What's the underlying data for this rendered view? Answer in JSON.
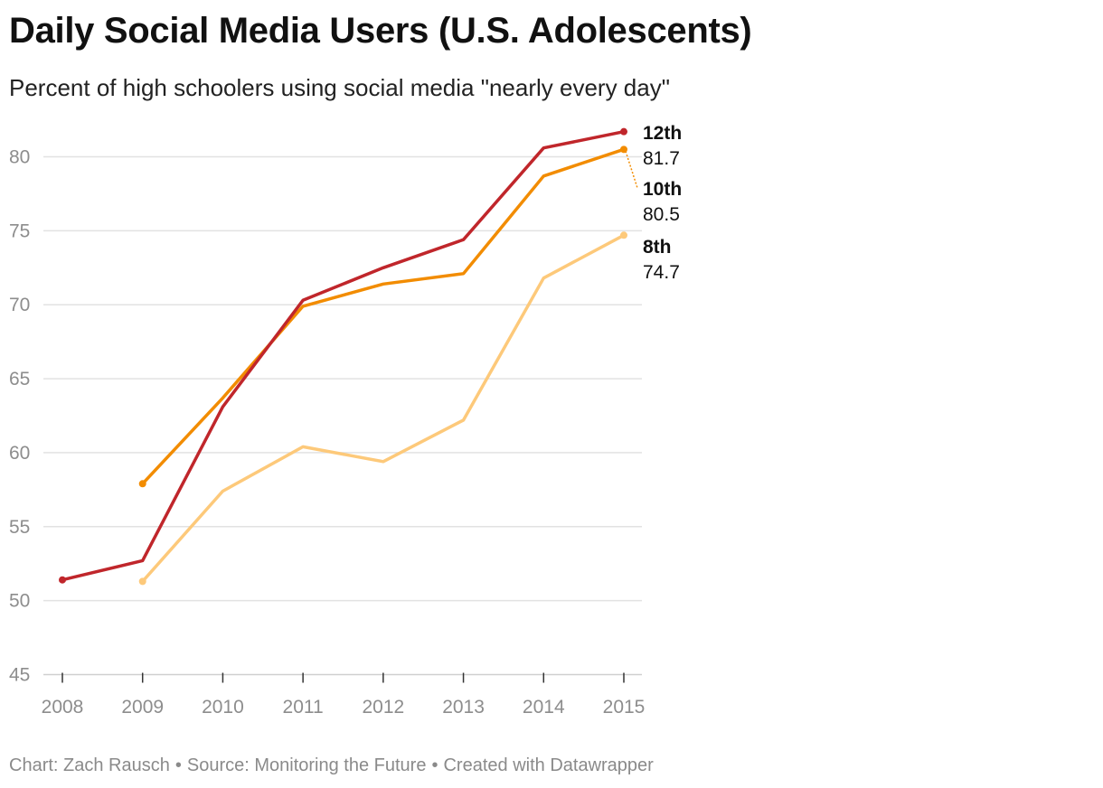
{
  "header": {
    "title": "Daily Social Media Users (U.S. Adolescents)",
    "subtitle": "Percent of high schoolers using social media \"nearly every day\""
  },
  "footer": {
    "chart_credit": "Chart: Zach Rausch",
    "source": "Source: Monitoring the Future",
    "tool": "Created with Datawrapper",
    "separator": "•"
  },
  "chart_data": {
    "type": "line",
    "title": "Daily Social Media Users (U.S. Adolescents)",
    "subtitle": "Percent of high schoolers using social media \"nearly every day\"",
    "xlabel": "",
    "ylabel": "",
    "x": [
      2008,
      2009,
      2010,
      2011,
      2012,
      2013,
      2014,
      2015
    ],
    "xlim": [
      2008,
      2015
    ],
    "ylim": [
      45,
      82
    ],
    "yticks": [
      45,
      50,
      55,
      60,
      65,
      70,
      75,
      80
    ],
    "grid": "horizontal",
    "series": [
      {
        "name": "12th",
        "color": "#c0262b",
        "values": [
          51.4,
          52.7,
          63.1,
          70.3,
          72.5,
          74.4,
          80.6,
          81.7
        ],
        "end_label": "81.7"
      },
      {
        "name": "10th",
        "color": "#f28c00",
        "values": [
          null,
          57.9,
          63.7,
          69.9,
          71.4,
          72.1,
          78.7,
          80.5
        ],
        "end_label": "80.5"
      },
      {
        "name": "8th",
        "color": "#fdc97a",
        "values": [
          null,
          51.3,
          57.4,
          60.4,
          59.4,
          62.2,
          71.8,
          74.7
        ],
        "end_label": "74.7"
      }
    ]
  }
}
